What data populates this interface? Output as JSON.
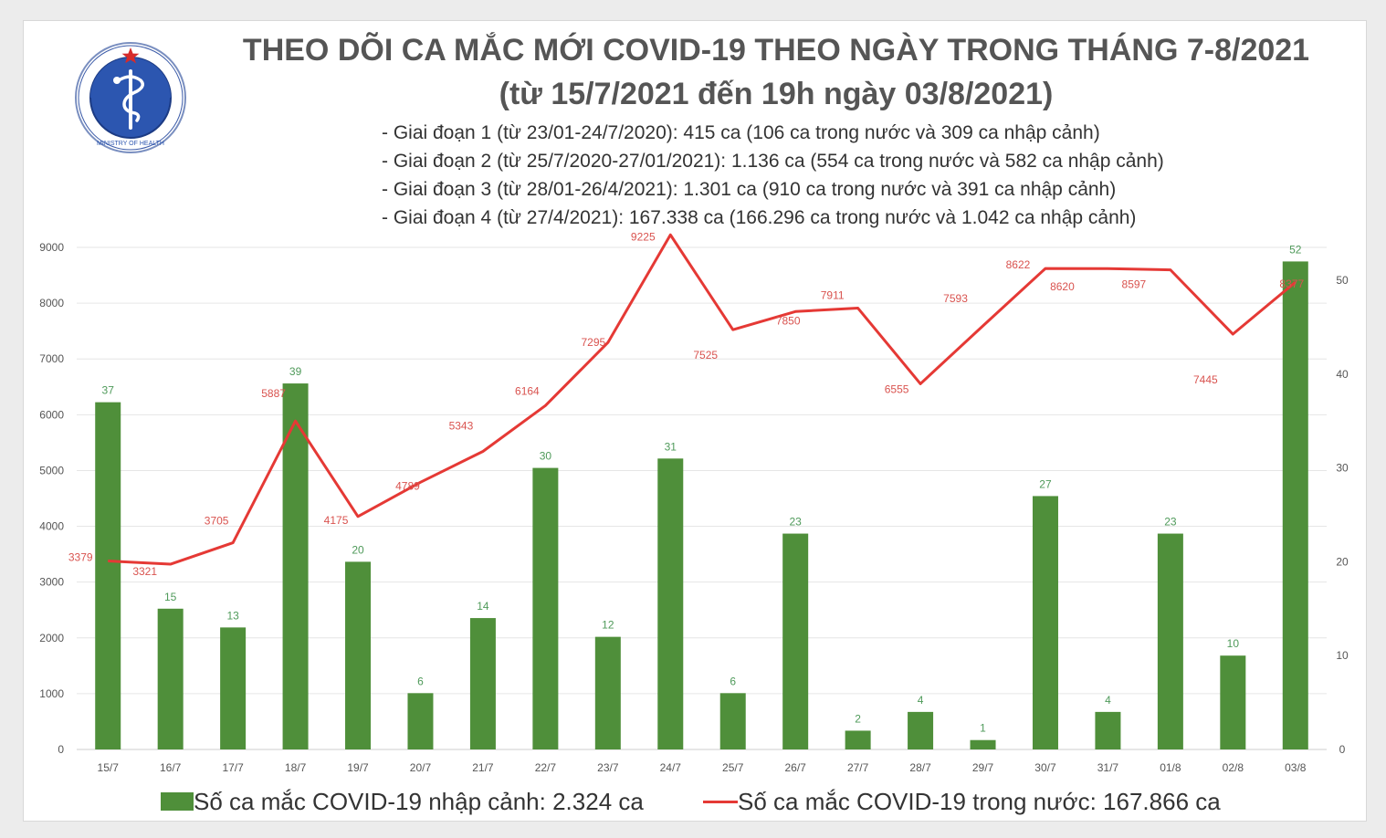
{
  "title_line1": "THEO DÕI CA MẮC MỚI COVID-19 THEO NGÀY TRONG THÁNG 7-8/2021",
  "title_line2": "(từ 15/7/2021 đến 19h ngày 03/8/2021)",
  "logo": {
    "top_text": "BỘ Y TẾ",
    "bottom_text": "MINISTRY OF HEALTH",
    "icon": "caduceus-icon"
  },
  "phases": [
    "- Giai đoạn 1 (từ 23/01-24/7/2020): 415 ca (106 ca trong nước và 309 ca nhập cảnh)",
    "- Giai đoạn 2 (từ 25/7/2020-27/01/2021): 1.136 ca (554 ca trong nước và 582 ca nhập cảnh)",
    "- Giai đoạn 3 (từ 28/01-26/4/2021): 1.301 ca (910 ca trong nước và 391 ca nhập cảnh)",
    "- Giai đoạn 4 (từ 27/4/2021): 167.338 ca (166.296 ca trong nước và 1.042 ca nhập cảnh)"
  ],
  "legend": {
    "bars": "Số ca mắc COVID-19 nhập cảnh: 2.324 ca",
    "line": "Số ca mắc COVID-19 trong nước: 167.866 ca"
  },
  "colors": {
    "bar": "#4f8f3a",
    "line": "#e53935",
    "bar_label": "#4f9a5a",
    "line_label": "#d9534f",
    "axis_text": "#555555",
    "grid": "#e6e6e6"
  },
  "chart_data": {
    "type": "bar+line",
    "categories": [
      "15/7",
      "16/7",
      "17/7",
      "18/7",
      "19/7",
      "20/7",
      "21/7",
      "22/7",
      "23/7",
      "24/7",
      "25/7",
      "26/7",
      "27/7",
      "28/7",
      "29/7",
      "30/7",
      "31/7",
      "01/8",
      "02/8",
      "03/8"
    ],
    "series": [
      {
        "type": "bar",
        "axis": "right",
        "values": [
          37,
          15,
          13,
          39,
          20,
          6,
          14,
          30,
          12,
          31,
          6,
          23,
          2,
          4,
          1,
          27,
          4,
          23,
          10,
          52
        ]
      },
      {
        "type": "line",
        "axis": "left",
        "values": [
          3379,
          3321,
          3705,
          5887,
          4175,
          4789,
          5343,
          6164,
          7295,
          9225,
          7525,
          7850,
          7911,
          6555,
          7593,
          8622,
          8620,
          8597,
          7445,
          8377
        ]
      }
    ],
    "left_axis": {
      "ticks": [
        0,
        1000,
        2000,
        3000,
        4000,
        5000,
        6000,
        7000,
        8000,
        9000
      ],
      "range": [
        0,
        9000
      ]
    },
    "right_axis": {
      "ticks": [
        0,
        10,
        20,
        30,
        40,
        50
      ],
      "range": [
        0,
        53.5
      ]
    },
    "grid": true
  }
}
